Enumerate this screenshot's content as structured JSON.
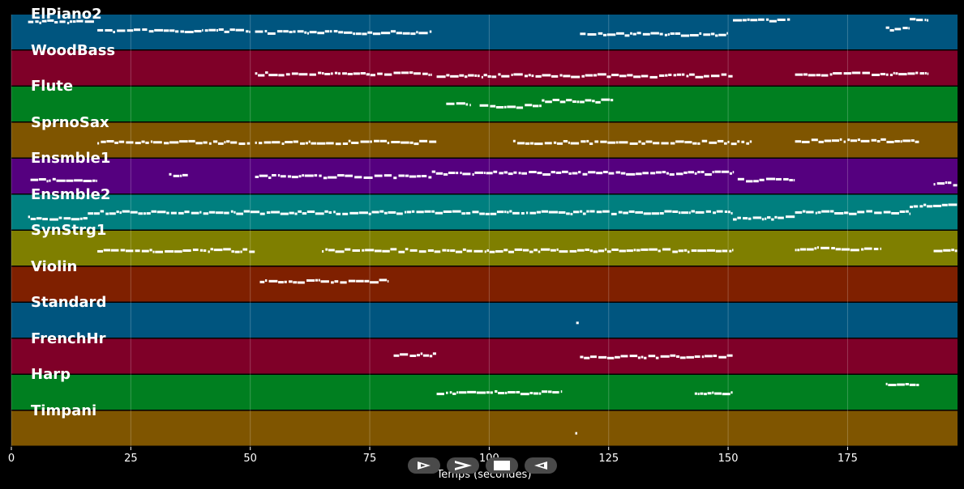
{
  "chart_data": {
    "type": "piano-roll",
    "xlabel": "Temps (secondes)",
    "xlim": [
      0,
      198
    ],
    "x_ticks": [
      0,
      25,
      50,
      75,
      100,
      125,
      150,
      175
    ],
    "x_tick_labels": [
      "0",
      "25",
      "50",
      "75",
      "100",
      "125",
      "150",
      "175"
    ],
    "grid": true,
    "tracks": [
      {
        "name": "ElPiano2",
        "color": "#00557f",
        "segments": [
          [
            3.5,
            17.5,
            0.8
          ],
          [
            18,
            40,
            0.55
          ],
          [
            40.5,
            50,
            0.55
          ],
          [
            51,
            88,
            0.5
          ],
          [
            119,
            150,
            0.45
          ],
          [
            151,
            163,
            0.85
          ],
          [
            183,
            188,
            0.6
          ],
          [
            188,
            192,
            0.85
          ]
        ]
      },
      {
        "name": "WoodBass",
        "color": "#7f0028",
        "segments": [
          [
            51,
            88,
            0.35
          ],
          [
            89,
            151,
            0.3
          ],
          [
            164,
            192,
            0.35
          ]
        ]
      },
      {
        "name": "Flute",
        "color": "#007f20",
        "segments": [
          [
            91,
            96,
            0.5
          ],
          [
            98,
            111,
            0.45
          ],
          [
            111,
            126,
            0.6
          ]
        ]
      },
      {
        "name": "SprnoSax",
        "color": "#7f5500",
        "segments": [
          [
            18,
            50,
            0.45
          ],
          [
            51,
            89,
            0.45
          ],
          [
            105,
            155,
            0.45
          ],
          [
            164,
            190,
            0.5
          ]
        ]
      },
      {
        "name": "Ensmble1",
        "color": "#55007f",
        "segments": [
          [
            4,
            18,
            0.4
          ],
          [
            33,
            37,
            0.55
          ],
          [
            51,
            88,
            0.5
          ],
          [
            88,
            151,
            0.6
          ],
          [
            152,
            164,
            0.4
          ],
          [
            193,
            198,
            0.3
          ]
        ]
      },
      {
        "name": "Ensmble2",
        "color": "#007f7f",
        "segments": [
          [
            3.5,
            16,
            0.35
          ],
          [
            16,
            151,
            0.5
          ],
          [
            151,
            164,
            0.35
          ],
          [
            164,
            188,
            0.5
          ],
          [
            188,
            198,
            0.7
          ]
        ]
      },
      {
        "name": "SynStrg1",
        "color": "#7f7f00",
        "segments": [
          [
            18,
            51,
            0.45
          ],
          [
            65,
            151,
            0.45
          ],
          [
            164,
            182,
            0.5
          ],
          [
            193,
            198,
            0.45
          ]
        ]
      },
      {
        "name": "Violin",
        "color": "#7f2000",
        "segments": [
          [
            52,
            79,
            0.6
          ]
        ]
      },
      {
        "name": "Standard",
        "color": "#00557f",
        "segments": [
          [
            118.2,
            118.8,
            0.45
          ]
        ]
      },
      {
        "name": "FrenchHr",
        "color": "#7f0028",
        "segments": [
          [
            80,
            89,
            0.55
          ],
          [
            119,
            151,
            0.5
          ]
        ]
      },
      {
        "name": "Harp",
        "color": "#007f20",
        "segments": [
          [
            89,
            115,
            0.5
          ],
          [
            143,
            151,
            0.5
          ],
          [
            183,
            190,
            0.75
          ]
        ]
      },
      {
        "name": "Timpani",
        "color": "#7f5500",
        "segments": [
          [
            118,
            118.5,
            0.35
          ]
        ]
      }
    ]
  },
  "controls": [
    {
      "name": "play-icon",
      "icon": "play-outline-icon"
    },
    {
      "name": "fast-forward-icon",
      "icon": "chevron-right-icon"
    },
    {
      "name": "stop-icon",
      "icon": "square-icon"
    },
    {
      "name": "rewind-icon",
      "icon": "back-triangle-icon"
    }
  ]
}
